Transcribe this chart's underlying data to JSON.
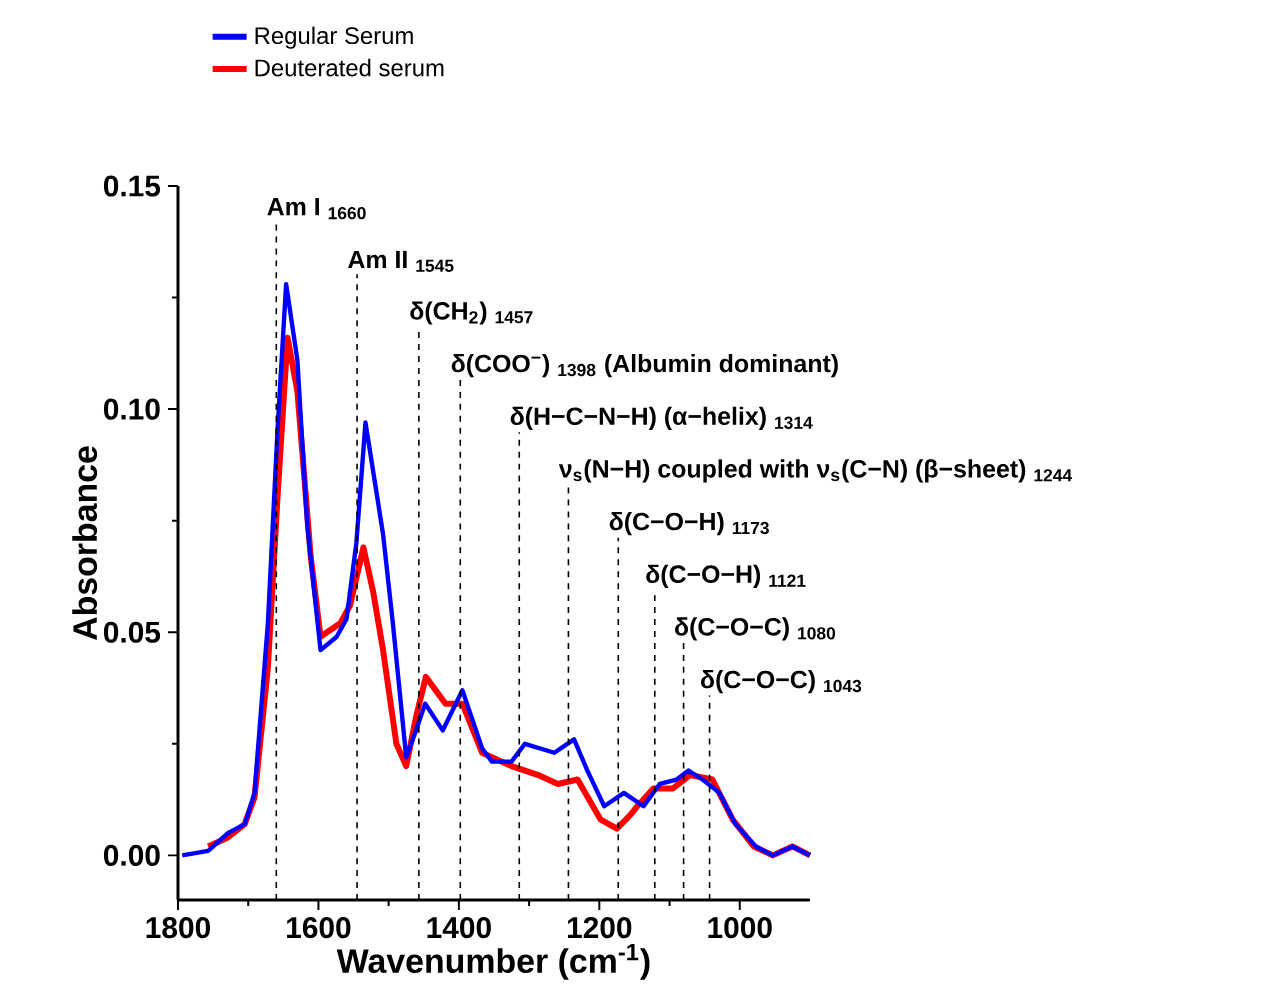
{
  "chart_data": {
    "type": "line",
    "xlabel": "Wavenumber (cm$^{-1}$)",
    "ylabel": "Absorbance",
    "xlim": [
      1800,
      900
    ],
    "xticks": [
      1800,
      1600,
      1400,
      1200,
      1000
    ],
    "ylim": [
      -0.01,
      0.15
    ],
    "yticks": [
      {
        "value": 0,
        "label": "0.00"
      },
      {
        "value": 0.05,
        "label": "0.05"
      },
      {
        "value": 0.1,
        "label": "0.10"
      },
      {
        "value": 0.15,
        "label": "0.15"
      }
    ],
    "legend": "top left",
    "marker": "none",
    "line_style": "solid",
    "series": [
      {
        "name": "Regular Serum",
        "color": "#0000ff",
        "x": [
          1794,
          1757,
          1729,
          1705,
          1691,
          1672,
          1658,
          1646,
          1630,
          1616,
          1597,
          1574,
          1560,
          1546,
          1533,
          1522,
          1508,
          1494,
          1475,
          1461,
          1448,
          1423,
          1395,
          1367,
          1353,
          1325,
          1306,
          1264,
          1236,
          1217,
          1193,
          1165,
          1137,
          1114,
          1090,
          1073,
          1053,
          1029,
          1006,
          977,
          953,
          925,
          900
        ],
        "values": [
          0.0,
          0.001,
          0.005,
          0.007,
          0.014,
          0.052,
          0.096,
          0.128,
          0.111,
          0.074,
          0.046,
          0.049,
          0.053,
          0.07,
          0.097,
          0.086,
          0.072,
          0.052,
          0.022,
          0.028,
          0.034,
          0.028,
          0.037,
          0.024,
          0.021,
          0.021,
          0.025,
          0.023,
          0.026,
          0.019,
          0.011,
          0.014,
          0.011,
          0.016,
          0.017,
          0.019,
          0.017,
          0.014,
          0.007,
          0.002,
          0.0,
          0.002,
          0.0
        ]
      },
      {
        "name": "Deuterated serum",
        "color": "#ff0000",
        "x": [
          1757,
          1729,
          1705,
          1691,
          1672,
          1658,
          1644,
          1630,
          1611,
          1597,
          1569,
          1555,
          1536,
          1522,
          1508,
          1489,
          1475,
          1461,
          1447,
          1419,
          1395,
          1367,
          1325,
          1287,
          1259,
          1231,
          1198,
          1175,
          1156,
          1146,
          1123,
          1095,
          1071,
          1039,
          1010,
          980,
          953,
          925,
          900
        ],
        "values": [
          0.002,
          0.004,
          0.007,
          0.013,
          0.042,
          0.081,
          0.116,
          0.104,
          0.067,
          0.049,
          0.052,
          0.056,
          0.069,
          0.059,
          0.046,
          0.025,
          0.02,
          0.031,
          0.04,
          0.034,
          0.034,
          0.023,
          0.02,
          0.018,
          0.016,
          0.017,
          0.008,
          0.006,
          0.009,
          0.011,
          0.015,
          0.015,
          0.018,
          0.017,
          0.008,
          0.002,
          0.0,
          0.002,
          0.0
        ]
      }
    ],
    "ref_lines": [
      {
        "axis": "x",
        "value": 1660,
        "label": "Am I $_{1660}$",
        "line_style": "dashed",
        "color": "#000000"
      },
      {
        "axis": "x",
        "value": 1545,
        "label": "Am II $_{1545}$",
        "line_style": "dashed",
        "color": "#000000"
      },
      {
        "axis": "x",
        "value": 1457,
        "label": "δ(CH$_{2}$) $_{1457}$",
        "line_style": "dashed",
        "color": "#000000"
      },
      {
        "axis": "x",
        "value": 1398,
        "label": "δ(COO$^{−}$) $_{1398}$ (Albumin dominant)",
        "line_style": "dashed",
        "color": "#000000"
      },
      {
        "axis": "x",
        "value": 1314,
        "label": "δ(H−C−N−H) (α−helix) $_{1314}$",
        "line_style": "dashed",
        "color": "#000000"
      },
      {
        "axis": "x",
        "value": 1244,
        "label": "ν$_{s}$(N−H) coupled with ν$_{s}$(C−N) (β−sheet) $_{1244}$",
        "line_style": "dashed",
        "color": "#000000"
      },
      {
        "axis": "x",
        "value": 1173,
        "label": "δ(C−O−H) $_{1173}$",
        "line_style": "dashed",
        "color": "#000000"
      },
      {
        "axis": "x",
        "value": 1121,
        "label": "δ(C−O−H) $_{1121}$",
        "line_style": "dashed",
        "color": "#000000"
      },
      {
        "axis": "x",
        "value": 1080,
        "label": "δ(C−O−C) $_{1080}$",
        "line_style": "dashed",
        "color": "#000000"
      },
      {
        "axis": "x",
        "value": 1043,
        "label": "δ(C−O−C) $_{1043}$",
        "line_style": "dashed",
        "color": "#000000"
      }
    ]
  }
}
